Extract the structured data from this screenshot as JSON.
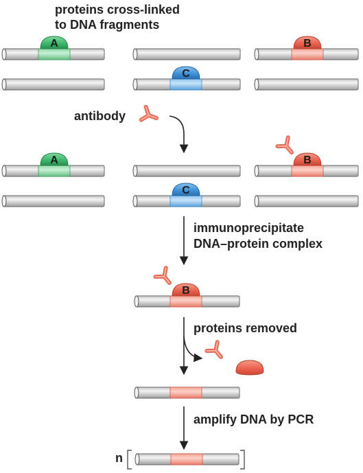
{
  "title_line1": "proteins cross-linked",
  "title_line2": "to DNA fragments",
  "step_antibody": "antibody",
  "step_ip_line1": "immunoprecipitate",
  "step_ip_line2": "DNA–protein complex",
  "step_removed": "proteins removed",
  "step_pcr": "amplify DNA by PCR",
  "n_label": "n",
  "proteins": {
    "a": "A",
    "b": "B",
    "c": "C"
  },
  "colors": {
    "protein_a": "#3bb56a",
    "protein_b": "#e8604c",
    "protein_c": "#3c8fd6",
    "antibody": "#ef7c68",
    "rod": "#d6d6d6",
    "arrow": "#222222"
  }
}
